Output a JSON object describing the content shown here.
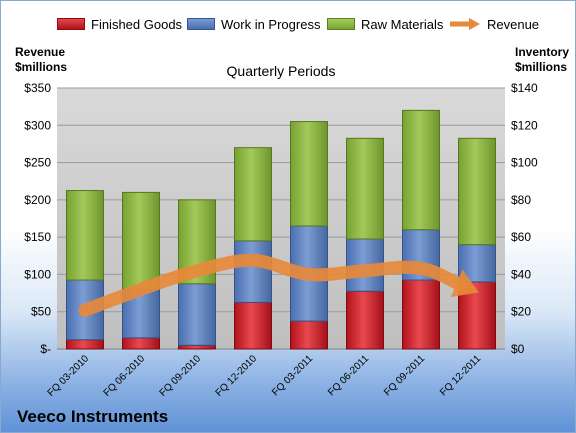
{
  "company": "Veeco Instruments",
  "chart_data": {
    "type": "bar",
    "stacked": true,
    "title": "Quarterly Periods",
    "categories": [
      "FQ 03-2010",
      "FQ 06-2010",
      "FQ 09-2010",
      "FQ 12-2010",
      "FQ 03-2011",
      "FQ 06-2011",
      "FQ 09-2011",
      "FQ 12-2011"
    ],
    "left_axis": {
      "label_line1": "Revenue",
      "label_line2": "$millions",
      "range": [
        0,
        350
      ],
      "ticks": [
        "$-",
        "$50",
        "$100",
        "$150",
        "$200",
        "$250",
        "$300",
        "$350"
      ]
    },
    "right_axis": {
      "label_line1": "Inventory",
      "label_line2": "$millions",
      "range": [
        0,
        140
      ],
      "ticks": [
        "$0",
        "$20",
        "$40",
        "$60",
        "$80",
        "$100",
        "$120",
        "$140"
      ]
    },
    "series": [
      {
        "name": "Finished Goods",
        "axis": "right",
        "color": "#cc1f26",
        "values": [
          5,
          6,
          2,
          25,
          15,
          31,
          37,
          36
        ]
      },
      {
        "name": "Work in Progress",
        "axis": "right",
        "color": "#5b80c0",
        "values": [
          32,
          26,
          33,
          33,
          51,
          28,
          27,
          20
        ]
      },
      {
        "name": "Raw Materials",
        "axis": "right",
        "color": "#8db63e",
        "values": [
          48,
          52,
          45,
          50,
          56,
          54,
          64,
          57
        ]
      },
      {
        "name": "Revenue",
        "type": "line",
        "axis": "left",
        "color": "#e7893a",
        "values": [
          52,
          80,
          105,
          119,
          100,
          105,
          108,
          77
        ]
      }
    ],
    "grid": true,
    "legend_position": "top"
  }
}
